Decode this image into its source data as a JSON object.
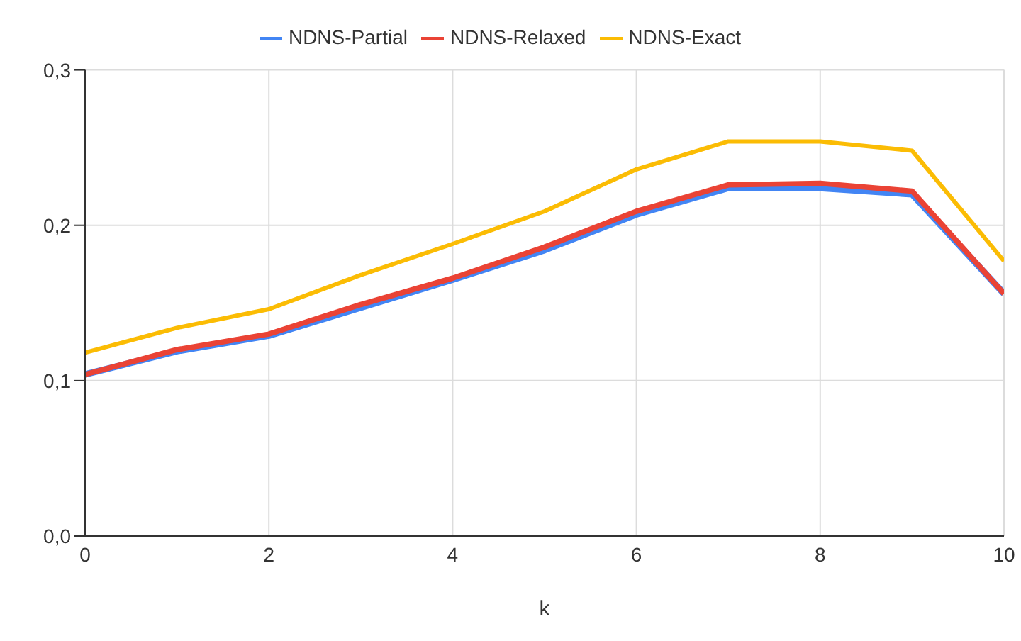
{
  "chart_data": {
    "type": "line",
    "xlabel": "k",
    "x": [
      0,
      1,
      2,
      3,
      4,
      5,
      6,
      7,
      8,
      9,
      10
    ],
    "series": [
      {
        "name": "NDNS-Partial",
        "color": "#4285f4",
        "values": [
          0.104,
          0.119,
          0.129,
          0.147,
          0.165,
          0.184,
          0.207,
          0.224,
          0.224,
          0.22,
          0.156
        ]
      },
      {
        "name": "NDNS-Relaxed",
        "color": "#ea4335",
        "values": [
          0.104,
          0.12,
          0.13,
          0.149,
          0.166,
          0.186,
          0.209,
          0.226,
          0.227,
          0.222,
          0.156
        ]
      },
      {
        "name": "NDNS-Exact",
        "color": "#fbbc04",
        "values": [
          0.118,
          0.134,
          0.146,
          0.168,
          0.188,
          0.209,
          0.236,
          0.254,
          0.254,
          0.248,
          0.177
        ]
      }
    ],
    "xlim": [
      0,
      10
    ],
    "xticks": [
      0,
      2,
      4,
      6,
      8,
      10
    ],
    "ylim": [
      0,
      0.3
    ],
    "yticks": [
      {
        "value": 0,
        "label": "0,0"
      },
      {
        "value": 0.1,
        "label": "0,1"
      },
      {
        "value": 0.2,
        "label": "0,2"
      },
      {
        "value": 0.3,
        "label": "0,3"
      }
    ],
    "grid": true,
    "legend": "top",
    "marker": "none",
    "line_style": "solid"
  }
}
